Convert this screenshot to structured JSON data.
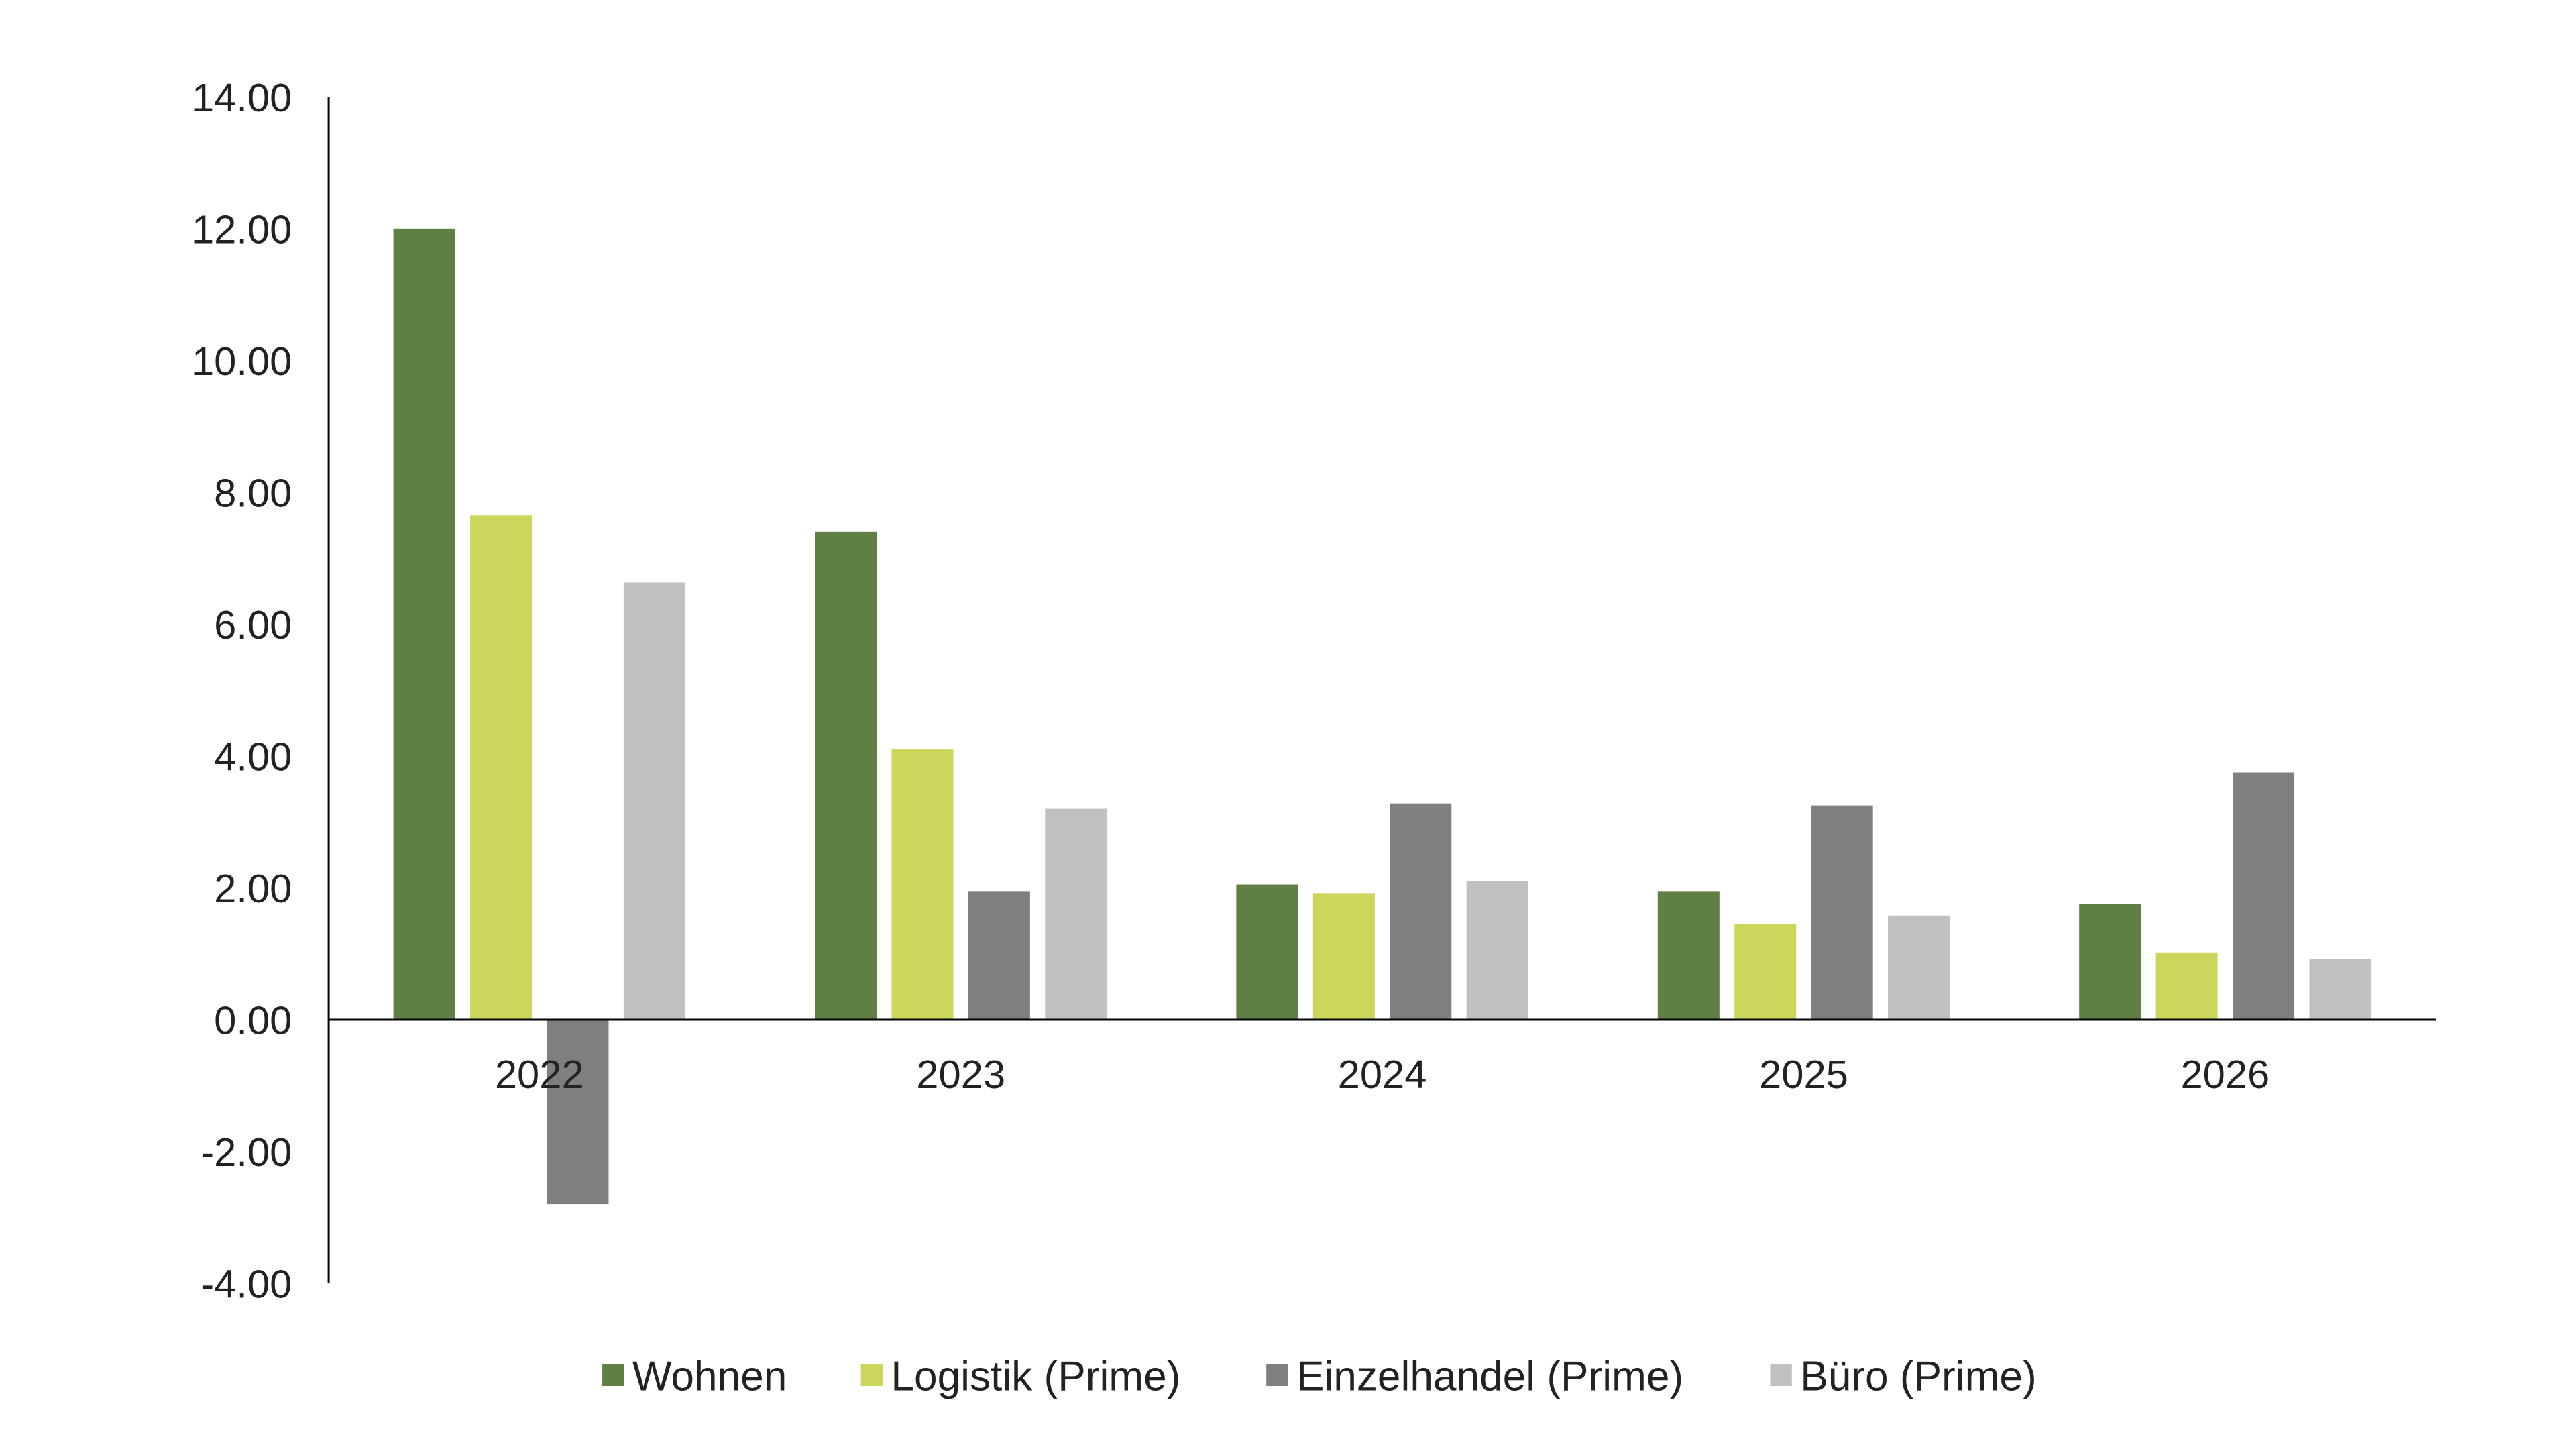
{
  "chart_data": {
    "type": "bar",
    "categories": [
      "2022",
      "2023",
      "2024",
      "2025",
      "2026"
    ],
    "series": [
      {
        "name": "Wohnen",
        "color": "#5f7f45",
        "values": [
          12.0,
          7.4,
          2.05,
          1.95,
          1.75
        ]
      },
      {
        "name": "Logistik (Prime)",
        "color": "#cdd65c",
        "values": [
          7.65,
          4.1,
          1.92,
          1.45,
          1.02
        ]
      },
      {
        "name": "Einzelhandel (Prime)",
        "color": "#7f7f7f",
        "values": [
          -2.8,
          1.95,
          3.28,
          3.25,
          3.75
        ]
      },
      {
        "name": "Büro (Prime)",
        "color": "#c0c0c0",
        "values": [
          6.63,
          3.2,
          2.1,
          1.58,
          0.92
        ]
      }
    ],
    "ylim": [
      -4,
      14
    ],
    "yticks": [
      "14.00",
      "12.00",
      "10.00",
      "8.00",
      "6.00",
      "4.00",
      "2.00",
      "0.00",
      "-2.00",
      "-4.00"
    ],
    "ytick_values": [
      14,
      12,
      10,
      8,
      6,
      4,
      2,
      0,
      -2,
      -4
    ],
    "title": "",
    "xlabel": "",
    "ylabel": "",
    "grid": false,
    "legend_position": "bottom"
  }
}
